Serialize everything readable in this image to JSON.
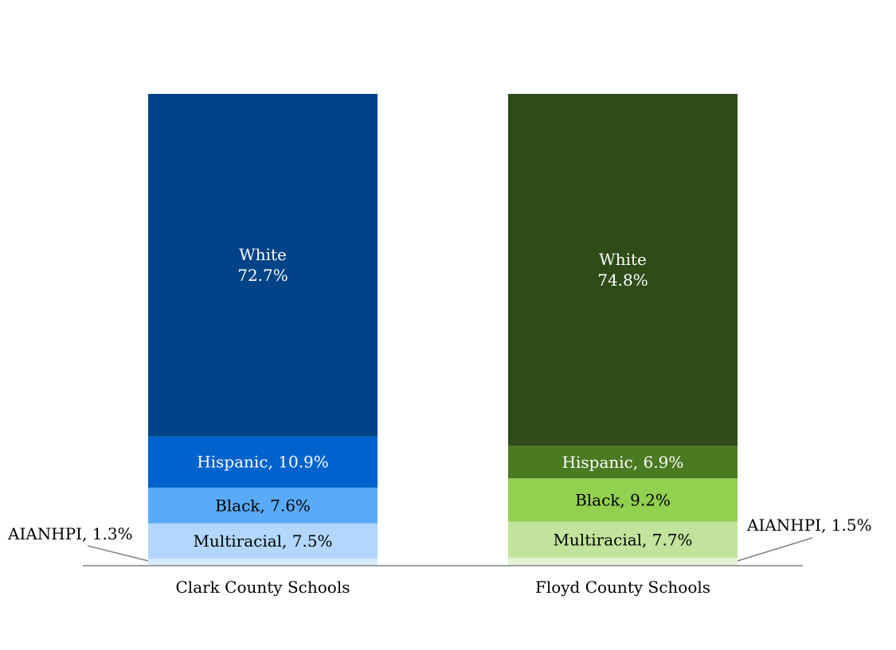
{
  "chart_data": {
    "type": "bar",
    "stacked": true,
    "title": "",
    "xlabel": "",
    "ylabel": "",
    "ylim": [
      0,
      100
    ],
    "grid": false,
    "categories": [
      "Clark County Schools",
      "Floyd County Schools"
    ],
    "series": [
      {
        "name": "AIANHPI",
        "values": [
          1.3,
          1.5
        ],
        "colors": [
          "#d6ebff",
          "#e2f2d2"
        ]
      },
      {
        "name": "Multiracial",
        "values": [
          7.5,
          7.7
        ],
        "colors": [
          "#b3d7fc",
          "#c2e39c"
        ]
      },
      {
        "name": "Black",
        "values": [
          7.6,
          9.2
        ],
        "colors": [
          "#5aabf7",
          "#92d050"
        ]
      },
      {
        "name": "Hispanic",
        "values": [
          10.9,
          6.9
        ],
        "colors": [
          "#0062cc",
          "#4a7a22"
        ]
      },
      {
        "name": "White",
        "values": [
          72.7,
          74.8
        ],
        "colors": [
          "#004388",
          "#2f4c18"
        ]
      }
    ],
    "segment_labels": [
      [
        "",
        "Multiracial, 7.5%",
        "Black, 7.6%",
        "Hispanic, 10.9%",
        "White|72.7%"
      ],
      [
        "",
        "Multiracial, 7.7%",
        "Black, 9.2%",
        "Hispanic, 6.9%",
        "White|74.8%"
      ]
    ],
    "segment_label_colors": [
      [
        "#000000",
        "#000000",
        "#000000",
        "#ffffff",
        "#ffffff"
      ],
      [
        "#000000",
        "#000000",
        "#000000",
        "#ffffff",
        "#ffffff"
      ]
    ],
    "callouts": [
      "AIANHPI, 1.3%",
      "AIANHPI, 1.5%"
    ],
    "axis_color": "#808080"
  }
}
